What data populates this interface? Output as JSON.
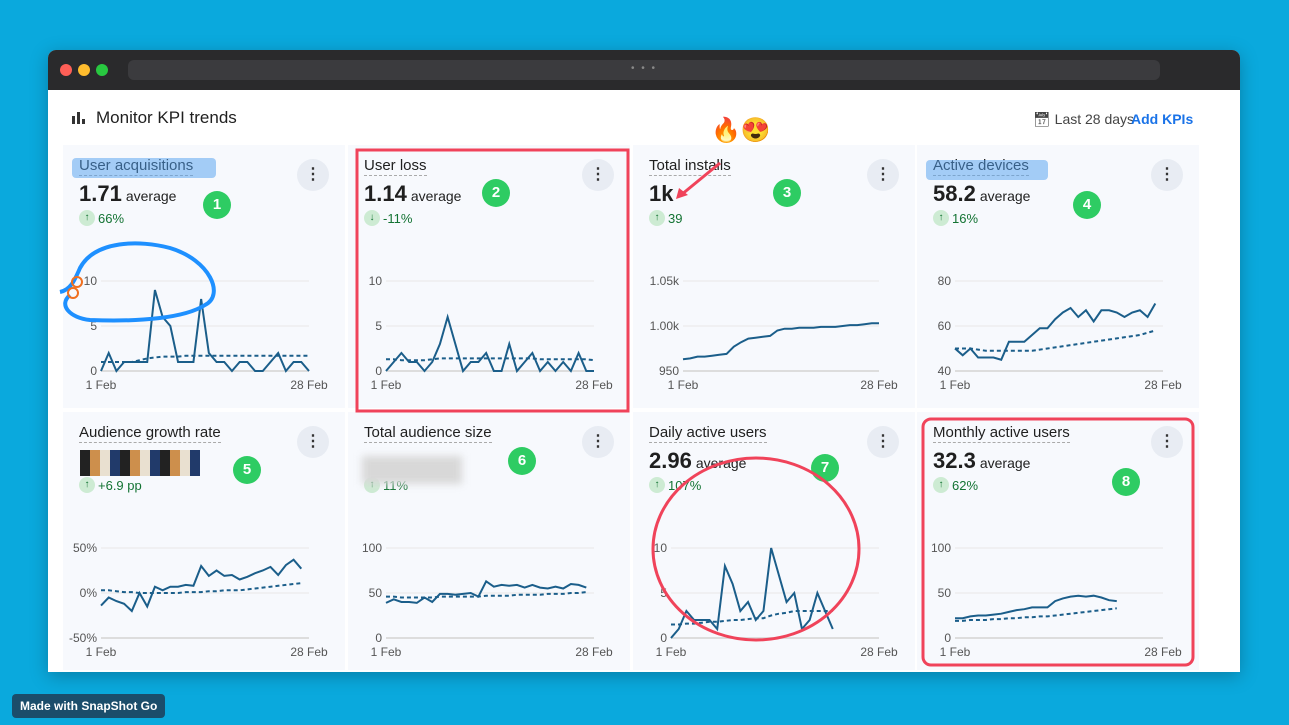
{
  "window": {
    "url_placeholder": "• • •"
  },
  "header": {
    "title": "Monitor KPI trends",
    "date_range": "Last 28 days",
    "add_kpis": "Add KPIs"
  },
  "colors": {
    "line": "#1b5e8a",
    "positive": "#137333",
    "annotation_red": "#f0435a",
    "annotation_blue": "#1e90ff",
    "badge": "#2ecc63"
  },
  "cards": [
    {
      "title": "User acquisitions",
      "value": "1.71",
      "suffix": "average",
      "change": "66%",
      "direction": "up",
      "badge": "1",
      "chart": {
        "ylim": [
          0,
          10
        ],
        "ticks": [
          "0",
          "5",
          "10"
        ],
        "x_start": "1 Feb",
        "x_end": "28 Feb",
        "actual": [
          0,
          2,
          0,
          1,
          1,
          1,
          1,
          9,
          6,
          5,
          1,
          1,
          1,
          8,
          2,
          1,
          1,
          0,
          1,
          1,
          0,
          0,
          1,
          2,
          0,
          1,
          1,
          0
        ],
        "baseline": [
          1,
          1,
          1,
          1,
          1,
          1.2,
          1.4,
          1.5,
          1.6,
          1.6,
          1.6,
          1.7,
          1.7,
          1.7,
          1.7,
          1.7,
          1.7,
          1.7,
          1.7,
          1.7,
          1.7,
          1.7,
          1.7,
          1.7,
          1.7,
          1.7,
          1.7,
          1.7
        ]
      }
    },
    {
      "title": "User loss",
      "value": "1.14",
      "suffix": "average",
      "change": "-11%",
      "direction": "down",
      "badge": "2",
      "chart": {
        "ylim": [
          0,
          10
        ],
        "ticks": [
          "0",
          "5",
          "10"
        ],
        "x_start": "1 Feb",
        "x_end": "28 Feb",
        "actual": [
          0,
          1,
          2,
          1,
          1,
          0,
          1,
          3,
          6,
          3,
          0,
          1,
          1,
          2,
          0,
          0,
          3,
          0,
          1,
          2,
          0,
          1,
          0,
          1,
          0,
          2,
          0,
          0
        ],
        "baseline": [
          1.3,
          1.3,
          1.2,
          1.2,
          1.2,
          1.2,
          1.3,
          1.4,
          1.4,
          1.4,
          1.4,
          1.4,
          1.4,
          1.4,
          1.4,
          1.4,
          1.4,
          1.4,
          1.4,
          1.4,
          1.3,
          1.3,
          1.3,
          1.3,
          1.3,
          1.3,
          1.3,
          1.2
        ]
      }
    },
    {
      "title": "Total installs",
      "value": "1k",
      "suffix": "",
      "change": "39",
      "direction": "up",
      "badge": "3",
      "chart": {
        "ylim": [
          950,
          1050
        ],
        "ticks": [
          "950",
          "1.00k",
          "1.05k"
        ],
        "x_start": "1 Feb",
        "x_end": "28 Feb",
        "actual": [
          963,
          964,
          966,
          966,
          967,
          968,
          969,
          977,
          982,
          986,
          987,
          988,
          989,
          995,
          997,
          997,
          998,
          998,
          998,
          999,
          999,
          999,
          1000,
          1001,
          1001,
          1002,
          1003,
          1003
        ],
        "baseline": []
      }
    },
    {
      "title": "Active devices",
      "value": "58.2",
      "suffix": "average",
      "change": "16%",
      "direction": "up",
      "badge": "4",
      "chart": {
        "ylim": [
          40,
          80
        ],
        "ticks": [
          "40",
          "60",
          "80"
        ],
        "x_start": "1 Feb",
        "x_end": "28 Feb",
        "actual": [
          50,
          47,
          50,
          46,
          46,
          46,
          45,
          53,
          53,
          53,
          56,
          59,
          59,
          63,
          66,
          68,
          64,
          67,
          62,
          67,
          67,
          66,
          64,
          66,
          67,
          64,
          70
        ],
        "baseline": [
          50,
          50,
          50,
          49.5,
          49,
          49,
          49,
          49,
          49,
          49,
          49,
          49.5,
          50,
          50.5,
          51,
          51.5,
          52,
          52.5,
          53,
          53.5,
          54,
          54.5,
          55,
          55.5,
          56,
          57,
          58
        ]
      }
    },
    {
      "title": "Audience growth rate",
      "value": "",
      "suffix": "",
      "change": "+6.9 pp",
      "direction": "up",
      "badge": "5",
      "chart": {
        "ylim": [
          -50,
          50
        ],
        "ticks": [
          "-50%",
          "0%",
          "50%"
        ],
        "x_start": "1 Feb",
        "x_end": "28 Feb",
        "actual": [
          -14,
          -5,
          -9,
          -12,
          -20,
          0,
          -15,
          7,
          3,
          7,
          7,
          9,
          8,
          30,
          19,
          25,
          19,
          20,
          15,
          18,
          22,
          25,
          29,
          20,
          31,
          37,
          27
        ],
        "baseline": [
          3,
          3,
          2,
          1,
          1,
          0,
          0,
          0,
          0,
          0,
          0,
          1,
          1,
          1,
          2,
          2,
          3,
          3,
          3,
          4,
          5,
          6,
          7,
          8,
          9,
          10,
          11
        ]
      }
    },
    {
      "title": "Total audience size",
      "value": "",
      "suffix": "",
      "change": "11%",
      "direction": "up",
      "badge": "6",
      "chart": {
        "ylim": [
          0,
          100
        ],
        "ticks": [
          "0",
          "50",
          "100"
        ],
        "x_start": "1 Feb",
        "x_end": "28 Feb",
        "actual": [
          39,
          43,
          40,
          40,
          39,
          45,
          40,
          49,
          49,
          48,
          49,
          50,
          46,
          63,
          57,
          59,
          58,
          59,
          56,
          59,
          56,
          55,
          57,
          55,
          60,
          59,
          56
        ],
        "baseline": [
          46,
          46,
          45,
          45,
          45,
          45,
          45,
          46,
          46,
          46,
          46,
          46,
          46,
          47,
          47,
          47,
          47,
          48,
          48,
          48,
          48,
          49,
          49,
          49,
          50,
          50,
          51
        ]
      }
    },
    {
      "title": "Daily active users",
      "value": "2.96",
      "suffix": "average",
      "change": "107%",
      "direction": "up",
      "badge": "7",
      "chart": {
        "ylim": [
          0,
          10
        ],
        "ticks": [
          "0",
          "5",
          "10"
        ],
        "x_start": "1 Feb",
        "x_end": "28 Feb",
        "actual": [
          0,
          1,
          3,
          2,
          2,
          2,
          1,
          8,
          6,
          3,
          4,
          2,
          3,
          10,
          7,
          4,
          5,
          1,
          2,
          5,
          3,
          1
        ],
        "baseline": [
          1.5,
          1.5,
          1.6,
          1.6,
          1.7,
          1.8,
          1.8,
          1.9,
          2,
          2,
          2.1,
          2.2,
          2.2,
          2.5,
          2.7,
          2.8,
          3,
          3,
          3,
          3,
          3,
          3
        ]
      }
    },
    {
      "title": "Monthly active users",
      "value": "32.3",
      "suffix": "average",
      "change": "62%",
      "direction": "up",
      "badge": "8",
      "chart": {
        "ylim": [
          0,
          100
        ],
        "ticks": [
          "0",
          "50",
          "100"
        ],
        "x_start": "1 Feb",
        "x_end": "28 Feb",
        "actual": [
          22,
          22,
          24,
          25,
          25,
          26,
          27,
          29,
          31,
          32,
          34,
          34,
          34,
          41,
          44,
          46,
          47,
          46,
          47,
          45,
          42,
          41
        ],
        "baseline": [
          19,
          19,
          20,
          20,
          20,
          21,
          21,
          22,
          22,
          23,
          23,
          24,
          24,
          25,
          26,
          27,
          28,
          29,
          30,
          31,
          32,
          33
        ]
      }
    }
  ],
  "annotations": {
    "emojis": "🔥😍"
  },
  "footer": {
    "text": "Made with SnapShot Go"
  }
}
